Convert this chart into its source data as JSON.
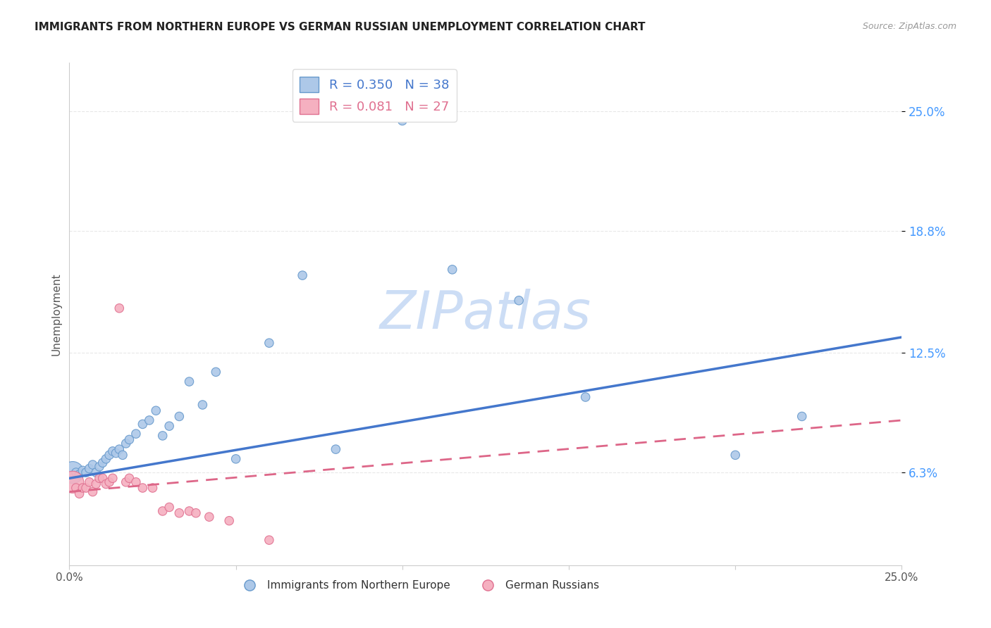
{
  "title": "IMMIGRANTS FROM NORTHERN EUROPE VS GERMAN RUSSIAN UNEMPLOYMENT CORRELATION CHART",
  "source": "Source: ZipAtlas.com",
  "ylabel": "Unemployment",
  "y_ticks": [
    0.063,
    0.125,
    0.188,
    0.25
  ],
  "y_tick_labels": [
    "6.3%",
    "12.5%",
    "18.8%",
    "25.0%"
  ],
  "xlim": [
    0.0,
    0.25
  ],
  "ylim": [
    0.015,
    0.275
  ],
  "blue_R": "0.350",
  "blue_N": "38",
  "pink_R": "0.081",
  "pink_N": "27",
  "blue_color": "#adc8e8",
  "blue_edge_color": "#6699cc",
  "pink_color": "#f5b0c0",
  "pink_edge_color": "#e07090",
  "blue_line_color": "#4477cc",
  "pink_line_color": "#dd6688",
  "watermark": "ZIPatlas",
  "watermark_color": "#ccddf5",
  "blue_scatter_x": [
    0.001,
    0.002,
    0.003,
    0.004,
    0.005,
    0.006,
    0.007,
    0.008,
    0.009,
    0.01,
    0.011,
    0.012,
    0.013,
    0.014,
    0.015,
    0.016,
    0.017,
    0.018,
    0.02,
    0.022,
    0.024,
    0.026,
    0.028,
    0.03,
    0.033,
    0.036,
    0.04,
    0.044,
    0.05,
    0.06,
    0.07,
    0.08,
    0.1,
    0.115,
    0.135,
    0.155,
    0.2,
    0.22
  ],
  "blue_scatter_y": [
    0.063,
    0.063,
    0.062,
    0.064,
    0.063,
    0.065,
    0.067,
    0.063,
    0.066,
    0.068,
    0.07,
    0.072,
    0.074,
    0.073,
    0.075,
    0.072,
    0.078,
    0.08,
    0.083,
    0.088,
    0.09,
    0.095,
    0.082,
    0.087,
    0.092,
    0.11,
    0.098,
    0.115,
    0.07,
    0.13,
    0.165,
    0.075,
    0.245,
    0.168,
    0.152,
    0.102,
    0.072,
    0.092
  ],
  "blue_scatter_size": [
    500,
    80,
    80,
    80,
    80,
    80,
    80,
    80,
    80,
    80,
    80,
    80,
    80,
    80,
    80,
    80,
    80,
    80,
    80,
    80,
    80,
    80,
    80,
    80,
    80,
    80,
    80,
    80,
    80,
    80,
    80,
    80,
    80,
    80,
    80,
    80,
    80,
    80
  ],
  "pink_scatter_x": [
    0.001,
    0.002,
    0.003,
    0.004,
    0.005,
    0.006,
    0.007,
    0.008,
    0.009,
    0.01,
    0.011,
    0.012,
    0.013,
    0.015,
    0.017,
    0.018,
    0.02,
    0.022,
    0.025,
    0.028,
    0.03,
    0.033,
    0.036,
    0.038,
    0.042,
    0.048,
    0.06
  ],
  "pink_scatter_y": [
    0.058,
    0.055,
    0.052,
    0.055,
    0.055,
    0.058,
    0.053,
    0.057,
    0.06,
    0.06,
    0.057,
    0.058,
    0.06,
    0.148,
    0.058,
    0.06,
    0.058,
    0.055,
    0.055,
    0.043,
    0.045,
    0.042,
    0.043,
    0.042,
    0.04,
    0.038,
    0.028
  ],
  "pink_scatter_size": [
    500,
    80,
    80,
    80,
    80,
    80,
    80,
    80,
    80,
    80,
    80,
    80,
    80,
    80,
    80,
    80,
    80,
    80,
    80,
    80,
    80,
    80,
    80,
    80,
    80,
    80,
    80
  ],
  "blue_line_x": [
    0.0,
    0.25
  ],
  "blue_line_y": [
    0.06,
    0.133
  ],
  "pink_line_x": [
    0.0,
    0.25
  ],
  "pink_line_y": [
    0.053,
    0.09
  ],
  "legend_label_blue": "Immigrants from Northern Europe",
  "legend_label_pink": "German Russians",
  "grid_color": "#e8e8e8",
  "title_fontsize": 11,
  "source_fontsize": 9,
  "tick_color_y": "#4499ff",
  "tick_color_x": "#555555"
}
